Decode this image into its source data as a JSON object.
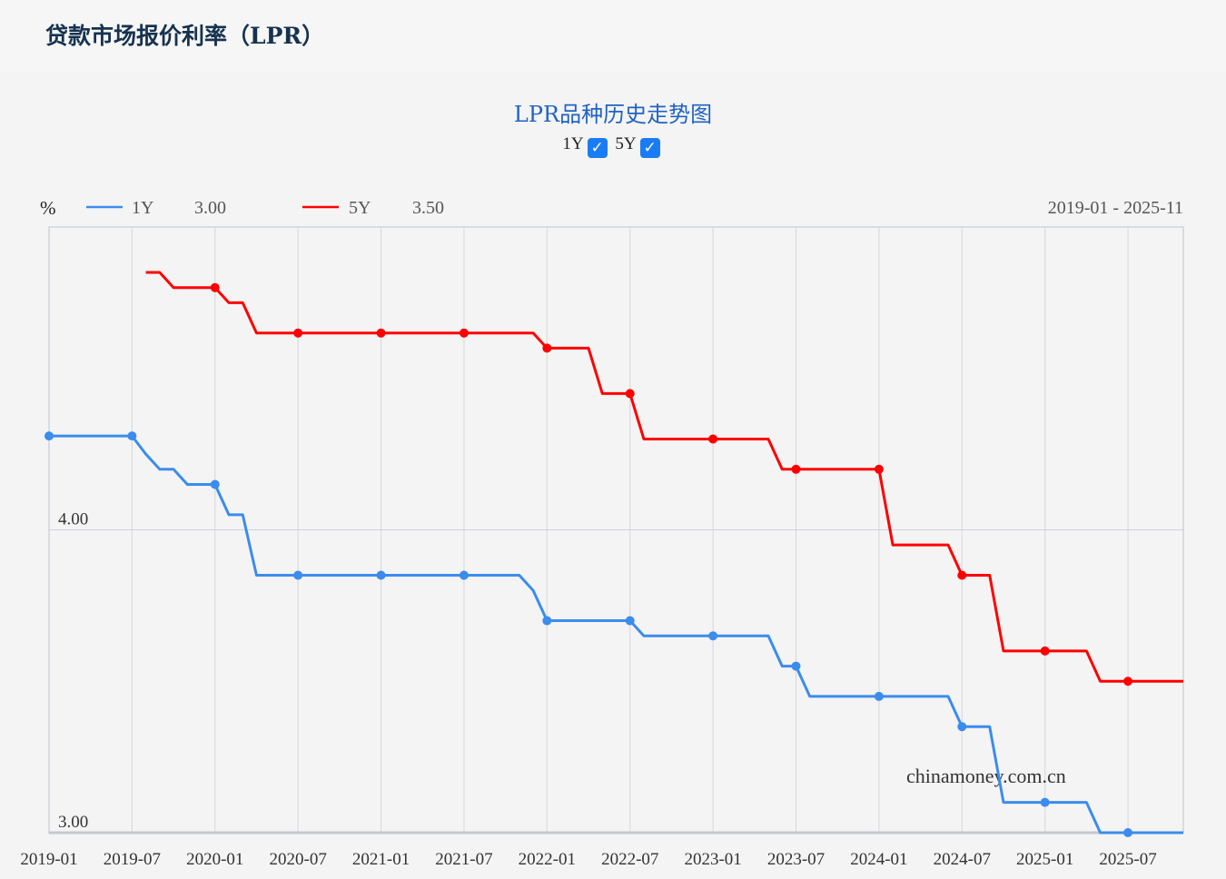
{
  "header": {
    "title": "贷款市场报价利率（LPR）"
  },
  "chart_title": "LPR品种历史走势图",
  "toggles": [
    {
      "label": "1Y",
      "checked": true,
      "icon": "checkbox-checked-icon"
    },
    {
      "label": "5Y",
      "checked": true,
      "icon": "checkbox-checked-icon"
    }
  ],
  "watermark": "chinamoney.com.cn",
  "chart_data": {
    "type": "line",
    "title": "LPR品种历史走势图",
    "ylabel": "%",
    "range_label": "2019-01 - 2025-11",
    "xlim": [
      "2019-01",
      "2025-11"
    ],
    "ylim": [
      3,
      5
    ],
    "y_ticks": [
      {
        "value": 3,
        "label": "3.00"
      },
      {
        "value": 4,
        "label": "4.00"
      }
    ],
    "x_ticks": [
      "2019-01",
      "2019-07",
      "2020-01",
      "2020-07",
      "2021-01",
      "2021-07",
      "2022-01",
      "2022-07",
      "2023-01",
      "2023-07",
      "2024-01",
      "2024-07",
      "2025-01",
      "2025-07"
    ],
    "grid": true,
    "legend_position": "top-left",
    "series": [
      {
        "name": "1Y",
        "latest": "3.00",
        "color": "#3b8ced",
        "changes": [
          [
            "2019-01",
            4.31
          ],
          [
            "2019-08",
            4.25
          ],
          [
            "2019-09",
            4.2
          ],
          [
            "2019-11",
            4.15
          ],
          [
            "2020-02",
            4.05
          ],
          [
            "2020-04",
            3.85
          ],
          [
            "2021-12",
            3.8
          ],
          [
            "2022-01",
            3.7
          ],
          [
            "2022-08",
            3.65
          ],
          [
            "2023-06",
            3.55
          ],
          [
            "2023-08",
            3.45
          ],
          [
            "2024-07",
            3.35
          ],
          [
            "2024-10",
            3.1
          ],
          [
            "2025-05",
            3.0
          ]
        ]
      },
      {
        "name": "5Y",
        "latest": "3.50",
        "color": "#ff0000",
        "changes": [
          [
            "2019-08",
            4.85
          ],
          [
            "2019-10",
            4.8
          ],
          [
            "2020-02",
            4.75
          ],
          [
            "2020-04",
            4.65
          ],
          [
            "2022-01",
            4.6
          ],
          [
            "2022-05",
            4.45
          ],
          [
            "2022-08",
            4.3
          ],
          [
            "2023-06",
            4.2
          ],
          [
            "2024-02",
            3.95
          ],
          [
            "2024-07",
            3.85
          ],
          [
            "2024-10",
            3.6
          ],
          [
            "2025-05",
            3.5
          ]
        ]
      }
    ]
  }
}
